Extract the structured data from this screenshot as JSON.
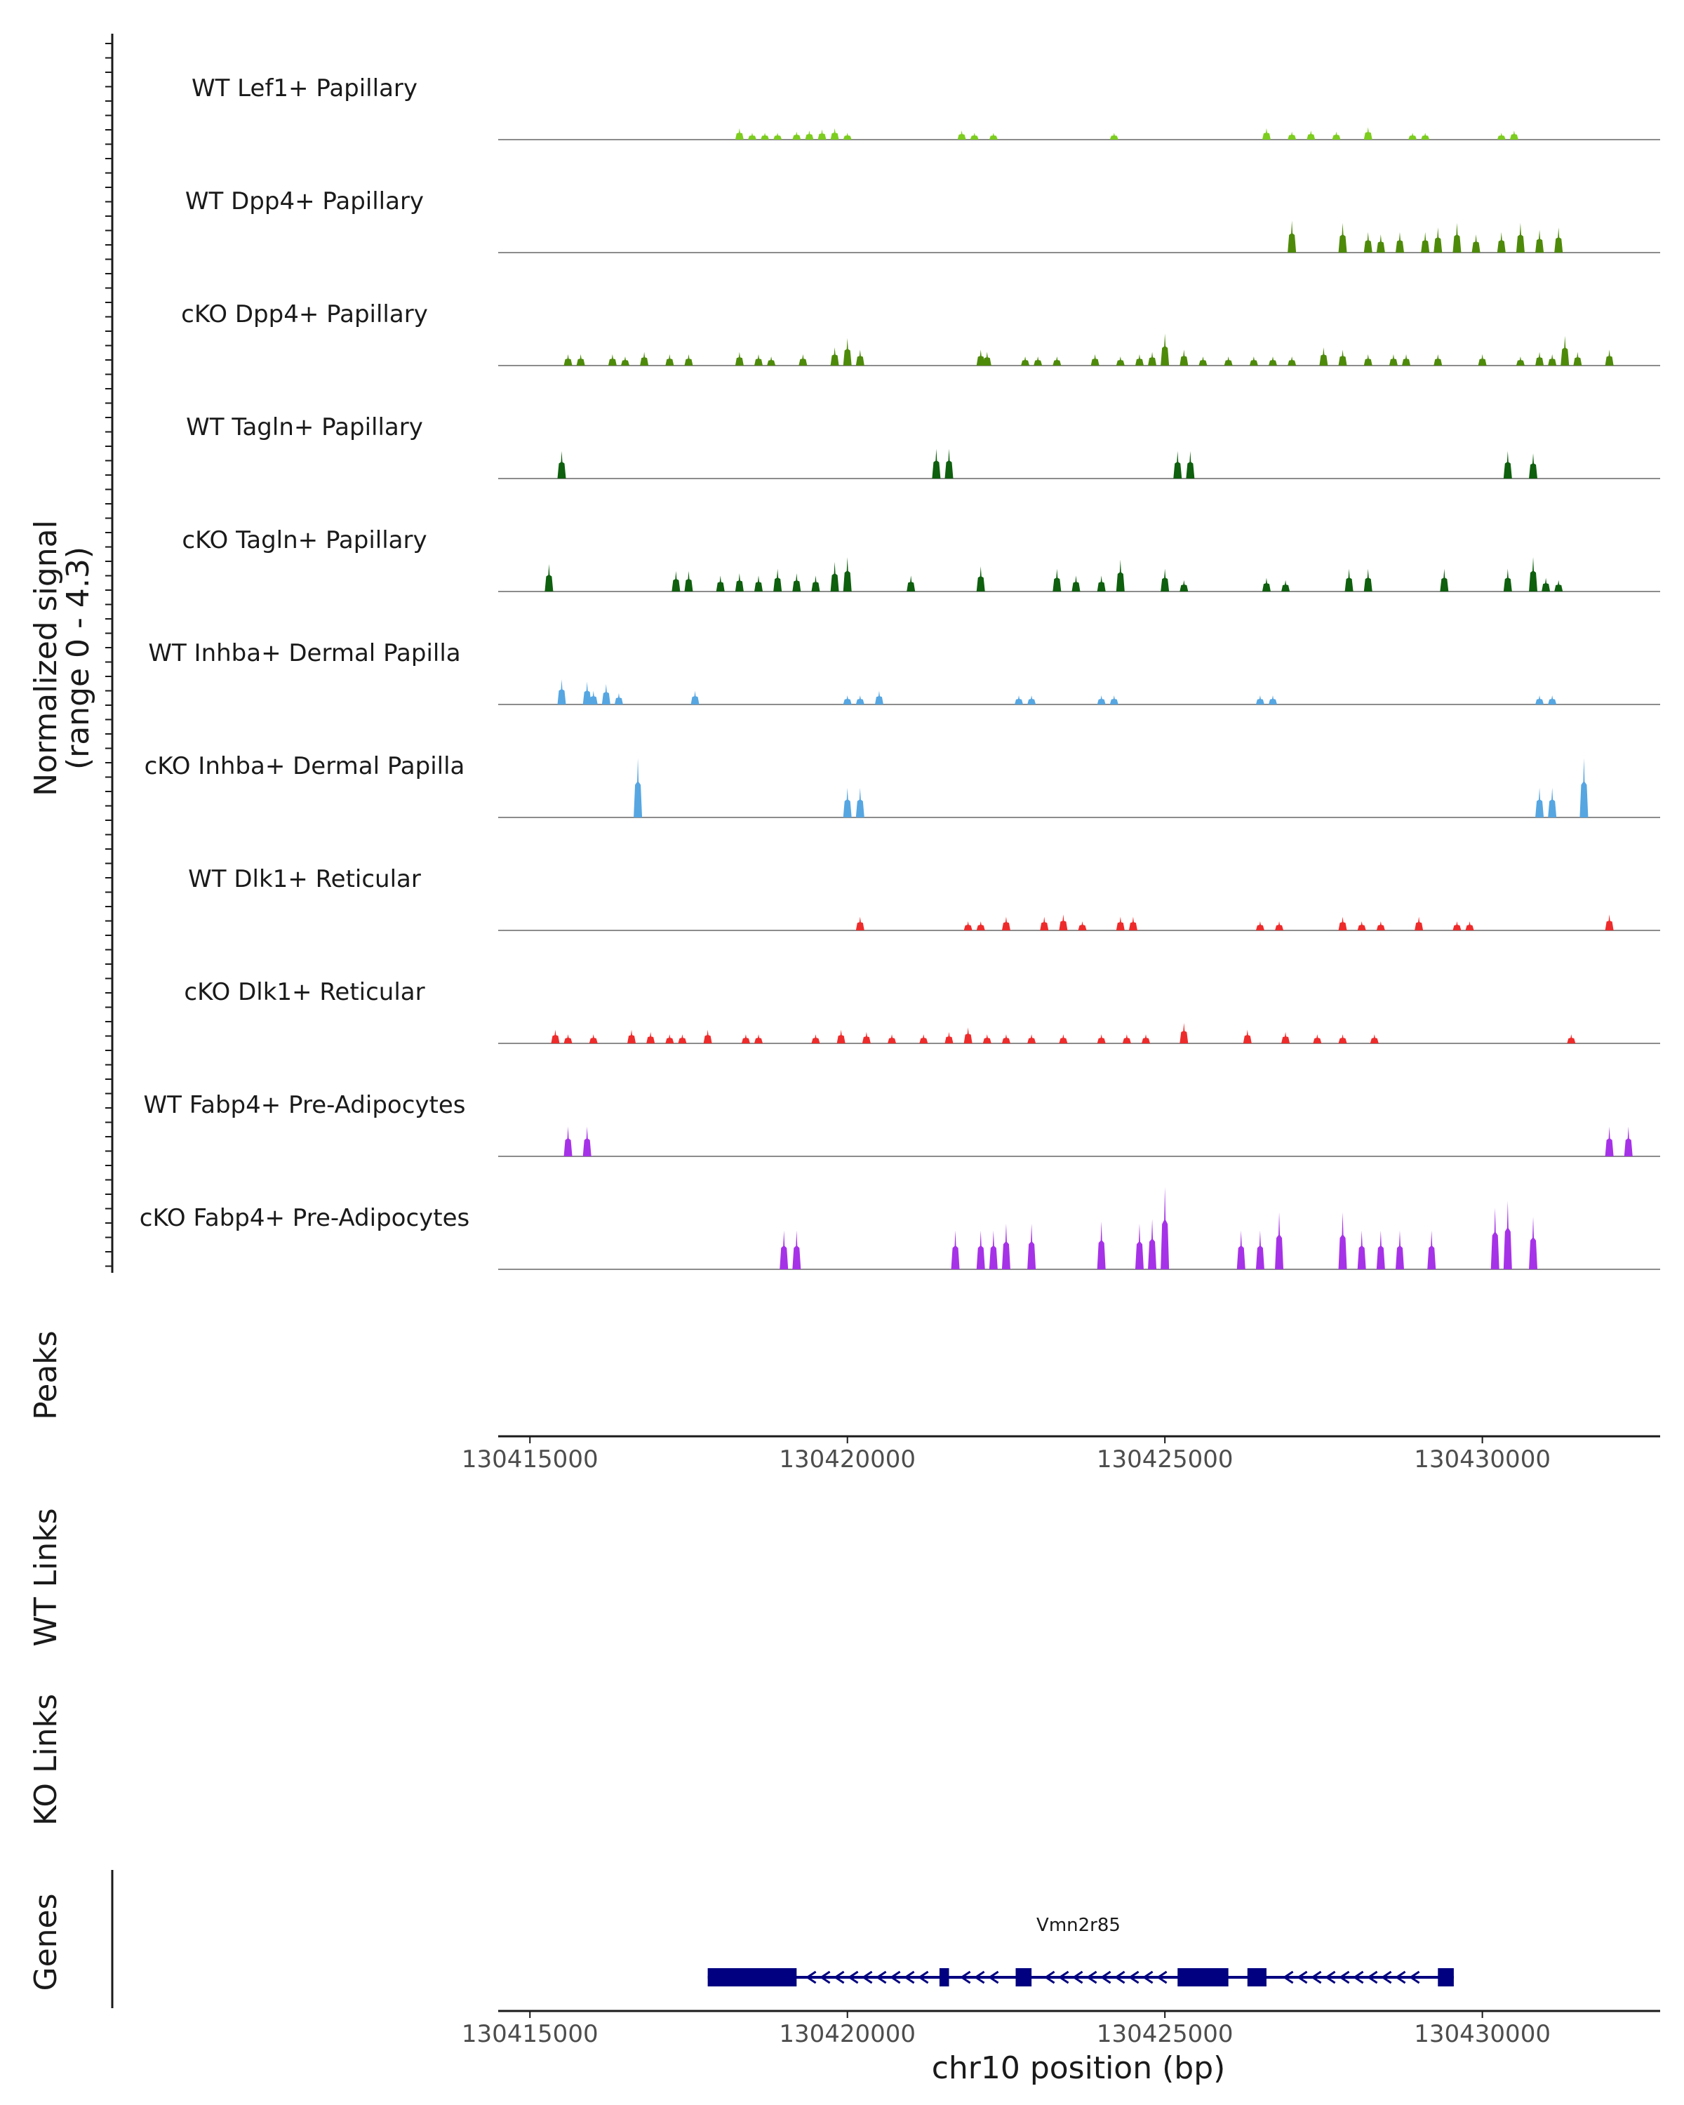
{
  "chart_data": {
    "type": "area",
    "region": "chr10:130414500-130432800",
    "xlim": [
      130414500,
      130432800
    ],
    "x_ticks": [
      130415000,
      130420000,
      130425000,
      130430000
    ],
    "xlabel": "chr10 position (bp)",
    "ylabel_line1": "Normalized signal",
    "ylabel_line2": "(range 0 - 4.3)",
    "ylim": [
      0,
      4.3
    ],
    "panel_titles": {
      "peaks": "Peaks",
      "wt_links": "WT Links",
      "ko_links": "KO Links",
      "genes": "Genes"
    },
    "series": [
      {
        "name": "WT Lef1+ Papillary",
        "color": "#7CCD1E",
        "peaks": [
          [
            130418300,
            0.5
          ],
          [
            130418500,
            0.3
          ],
          [
            130418700,
            0.3
          ],
          [
            130418900,
            0.3
          ],
          [
            130419200,
            0.35
          ],
          [
            130419400,
            0.4
          ],
          [
            130419600,
            0.45
          ],
          [
            130419800,
            0.5
          ],
          [
            130420000,
            0.3
          ],
          [
            130421800,
            0.4
          ],
          [
            130422000,
            0.3
          ],
          [
            130422300,
            0.3
          ],
          [
            130424200,
            0.3
          ],
          [
            130426600,
            0.5
          ],
          [
            130427000,
            0.35
          ],
          [
            130427300,
            0.4
          ],
          [
            130427700,
            0.35
          ],
          [
            130428200,
            0.55
          ],
          [
            130428900,
            0.3
          ],
          [
            130429100,
            0.3
          ],
          [
            130430300,
            0.3
          ],
          [
            130430500,
            0.4
          ]
        ]
      },
      {
        "name": "WT Dpp4+ Papillary",
        "color": "#4E8A0A",
        "peaks": [
          [
            130427000,
            1.4
          ],
          [
            130427800,
            1.3
          ],
          [
            130428200,
            0.9
          ],
          [
            130428400,
            0.8
          ],
          [
            130428700,
            0.9
          ],
          [
            130429100,
            0.9
          ],
          [
            130429300,
            1.1
          ],
          [
            130429600,
            1.3
          ],
          [
            130429900,
            0.8
          ],
          [
            130430300,
            0.9
          ],
          [
            130430600,
            1.3
          ],
          [
            130430900,
            1.0
          ],
          [
            130431200,
            1.1
          ]
        ]
      },
      {
        "name": "cKO Dpp4+ Papillary",
        "color": "#4E8A0A",
        "peaks": [
          [
            130415600,
            0.5
          ],
          [
            130415800,
            0.5
          ],
          [
            130416300,
            0.5
          ],
          [
            130416500,
            0.4
          ],
          [
            130416800,
            0.6
          ],
          [
            130417200,
            0.5
          ],
          [
            130417500,
            0.5
          ],
          [
            130418300,
            0.6
          ],
          [
            130418600,
            0.5
          ],
          [
            130418800,
            0.4
          ],
          [
            130419300,
            0.5
          ],
          [
            130419800,
            0.8
          ],
          [
            130420000,
            1.2
          ],
          [
            130420200,
            0.7
          ],
          [
            130422100,
            0.7
          ],
          [
            130422200,
            0.6
          ],
          [
            130422800,
            0.4
          ],
          [
            130423000,
            0.4
          ],
          [
            130423300,
            0.4
          ],
          [
            130423900,
            0.5
          ],
          [
            130424300,
            0.4
          ],
          [
            130424600,
            0.5
          ],
          [
            130424800,
            0.6
          ],
          [
            130425000,
            1.4
          ],
          [
            130425300,
            0.7
          ],
          [
            130425600,
            0.4
          ],
          [
            130426000,
            0.4
          ],
          [
            130426400,
            0.4
          ],
          [
            130426700,
            0.4
          ],
          [
            130427000,
            0.4
          ],
          [
            130427500,
            0.8
          ],
          [
            130427800,
            0.7
          ],
          [
            130428200,
            0.5
          ],
          [
            130428600,
            0.5
          ],
          [
            130428800,
            0.5
          ],
          [
            130429300,
            0.5
          ],
          [
            130430000,
            0.5
          ],
          [
            130430600,
            0.4
          ],
          [
            130430900,
            0.6
          ],
          [
            130431100,
            0.5
          ],
          [
            130431300,
            1.3
          ],
          [
            130431500,
            0.6
          ],
          [
            130432000,
            0.7
          ]
        ]
      },
      {
        "name": "WT Tagln+ Papillary",
        "color": "#0E5F0E",
        "peaks": [
          [
            130415500,
            1.2
          ],
          [
            130421400,
            1.3
          ],
          [
            130421600,
            1.3
          ],
          [
            130425200,
            1.2
          ],
          [
            130425400,
            1.2
          ],
          [
            130430400,
            1.2
          ],
          [
            130430800,
            1.1
          ]
        ]
      },
      {
        "name": "cKO Tagln+ Papillary",
        "color": "#0E5F0E",
        "peaks": [
          [
            130415300,
            1.2
          ],
          [
            130417300,
            0.9
          ],
          [
            130417500,
            0.9
          ],
          [
            130418000,
            0.7
          ],
          [
            130418300,
            0.8
          ],
          [
            130418600,
            0.7
          ],
          [
            130418900,
            1.0
          ],
          [
            130419200,
            0.8
          ],
          [
            130419500,
            0.7
          ],
          [
            130419800,
            1.3
          ],
          [
            130420000,
            1.5
          ],
          [
            130421000,
            0.7
          ],
          [
            130422100,
            1.1
          ],
          [
            130423300,
            1.0
          ],
          [
            130423600,
            0.7
          ],
          [
            130424000,
            0.7
          ],
          [
            130424300,
            1.4
          ],
          [
            130425000,
            1.0
          ],
          [
            130425300,
            0.5
          ],
          [
            130426600,
            0.6
          ],
          [
            130426900,
            0.5
          ],
          [
            130427900,
            1.0
          ],
          [
            130428200,
            1.0
          ],
          [
            130429400,
            1.0
          ],
          [
            130430400,
            1.0
          ],
          [
            130430800,
            1.5
          ],
          [
            130431000,
            0.6
          ],
          [
            130431200,
            0.5
          ]
        ]
      },
      {
        "name": "WT Inhba+ Dermal Papilla",
        "color": "#56A6E2",
        "peaks": [
          [
            130415500,
            1.1
          ],
          [
            130415900,
            1.0
          ],
          [
            130416000,
            0.6
          ],
          [
            130416200,
            0.9
          ],
          [
            130416400,
            0.5
          ],
          [
            130417600,
            0.6
          ],
          [
            130420000,
            0.4
          ],
          [
            130420200,
            0.4
          ],
          [
            130420500,
            0.6
          ],
          [
            130422700,
            0.4
          ],
          [
            130422900,
            0.4
          ],
          [
            130424000,
            0.4
          ],
          [
            130424200,
            0.4
          ],
          [
            130426500,
            0.4
          ],
          [
            130426700,
            0.4
          ],
          [
            130430900,
            0.4
          ],
          [
            130431100,
            0.4
          ]
        ]
      },
      {
        "name": "cKO Inhba+ Dermal Papilla",
        "color": "#56A6E2",
        "peaks": [
          [
            130416700,
            2.6
          ],
          [
            130420000,
            1.3
          ],
          [
            130420200,
            1.3
          ],
          [
            130430900,
            1.3
          ],
          [
            130431100,
            1.3
          ],
          [
            130431600,
            2.6
          ]
        ]
      },
      {
        "name": "WT Dlk1+ Reticular",
        "color": "#EE2B2B",
        "peaks": [
          [
            130420200,
            0.6
          ],
          [
            130421900,
            0.4
          ],
          [
            130422100,
            0.4
          ],
          [
            130422500,
            0.6
          ],
          [
            130423100,
            0.6
          ],
          [
            130423400,
            0.7
          ],
          [
            130423700,
            0.4
          ],
          [
            130424300,
            0.6
          ],
          [
            130424500,
            0.6
          ],
          [
            130426500,
            0.4
          ],
          [
            130426800,
            0.4
          ],
          [
            130427800,
            0.6
          ],
          [
            130428100,
            0.4
          ],
          [
            130428400,
            0.4
          ],
          [
            130429000,
            0.6
          ],
          [
            130429600,
            0.4
          ],
          [
            130429800,
            0.4
          ],
          [
            130432000,
            0.7
          ]
        ]
      },
      {
        "name": "cKO Dlk1+ Reticular",
        "color": "#EE2B2B",
        "peaks": [
          [
            130415400,
            0.6
          ],
          [
            130415600,
            0.4
          ],
          [
            130416000,
            0.4
          ],
          [
            130416600,
            0.6
          ],
          [
            130416900,
            0.5
          ],
          [
            130417200,
            0.4
          ],
          [
            130417400,
            0.4
          ],
          [
            130417800,
            0.6
          ],
          [
            130418400,
            0.4
          ],
          [
            130418600,
            0.4
          ],
          [
            130419500,
            0.4
          ],
          [
            130419900,
            0.6
          ],
          [
            130420300,
            0.5
          ],
          [
            130420700,
            0.4
          ],
          [
            130421200,
            0.4
          ],
          [
            130421600,
            0.5
          ],
          [
            130421900,
            0.7
          ],
          [
            130422200,
            0.4
          ],
          [
            130422500,
            0.4
          ],
          [
            130422900,
            0.4
          ],
          [
            130423400,
            0.4
          ],
          [
            130424000,
            0.4
          ],
          [
            130424400,
            0.4
          ],
          [
            130424700,
            0.4
          ],
          [
            130425300,
            0.9
          ],
          [
            130426300,
            0.6
          ],
          [
            130426900,
            0.5
          ],
          [
            130427400,
            0.4
          ],
          [
            130427800,
            0.4
          ],
          [
            130428300,
            0.4
          ],
          [
            130431400,
            0.4
          ]
        ]
      },
      {
        "name": "WT Fabp4+ Pre-Adipocytes",
        "color": "#A632E8",
        "peaks": [
          [
            130415600,
            1.3
          ],
          [
            130415900,
            1.3
          ],
          [
            130432000,
            1.3
          ],
          [
            130432300,
            1.3
          ]
        ]
      },
      {
        "name": "cKO Fabp4+ Pre-Adipocytes",
        "color": "#A632E8",
        "peaks": [
          [
            130419000,
            1.7
          ],
          [
            130419200,
            1.7
          ],
          [
            130421700,
            1.7
          ],
          [
            130422100,
            1.7
          ],
          [
            130422300,
            1.7
          ],
          [
            130422500,
            2.0
          ],
          [
            130422900,
            2.0
          ],
          [
            130424000,
            2.1
          ],
          [
            130424600,
            2.0
          ],
          [
            130424800,
            2.2
          ],
          [
            130425000,
            3.6
          ],
          [
            130426200,
            1.7
          ],
          [
            130426500,
            1.7
          ],
          [
            130426800,
            2.5
          ],
          [
            130427800,
            2.5
          ],
          [
            130428100,
            1.7
          ],
          [
            130428400,
            1.7
          ],
          [
            130428700,
            1.7
          ],
          [
            130429200,
            1.7
          ],
          [
            130430200,
            2.7
          ],
          [
            130430400,
            3.0
          ],
          [
            130430800,
            2.3
          ]
        ]
      }
    ],
    "gene": {
      "name": "Vmn2r85",
      "color": "#000080",
      "start": 130417800,
      "end": 130429550,
      "strand": "-",
      "exons": [
        [
          130417800,
          130419200
        ],
        [
          130421450,
          130421600
        ],
        [
          130422650,
          130422900
        ],
        [
          130425200,
          130426000
        ],
        [
          130426300,
          130426600
        ],
        [
          130429300,
          130429550
        ]
      ]
    }
  }
}
